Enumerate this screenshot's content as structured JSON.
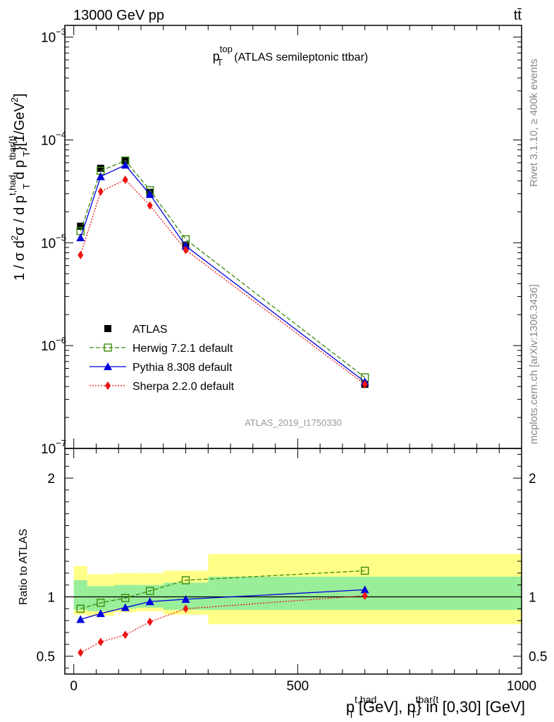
{
  "header": {
    "energy_label": "13000 GeV pp",
    "process_label": "tt̄"
  },
  "side_labels": {
    "rivet": "Rivet 3.1.10, ≥ 400k events",
    "url": "mcplots.cern.ch [arXiv:1306.3436]"
  },
  "chart_data": [
    {
      "type": "scatter",
      "title_main": "p",
      "title_sub": "T",
      "title_sup": "top",
      "title_rest": " (ATLAS semileptonic ttbar)",
      "watermark": "ATLAS_2019_I1750330",
      "ylabel": {
        "a": "1 / σ d",
        "b": "2",
        "c": "σ / d p",
        "d": "t,had",
        "e": "T",
        "f": " d p",
        "g": "tbar{t}",
        "h": "T",
        "i": "}[1/GeV",
        "j": "2",
        "k": "]"
      },
      "y_scale": "log",
      "ylim": [
        1e-07,
        0.0013
      ],
      "xlim": [
        -20,
        1000
      ],
      "yticks": [
        {
          "base": "10",
          "exp": "−3",
          "value": 0.001
        },
        {
          "base": "10",
          "exp": "−4",
          "value": 0.0001
        },
        {
          "base": "10",
          "exp": "−5",
          "value": 1e-05
        },
        {
          "base": "10",
          "exp": "−6",
          "value": 1e-06
        },
        {
          "base": "10",
          "exp": "−7",
          "value": 1e-07
        }
      ],
      "legend_position": "bottom-left",
      "x": [
        15,
        60,
        115,
        170,
        250,
        650
      ],
      "series": [
        {
          "name": "ATLAS",
          "color": "#000000",
          "marker": "square-filled",
          "line": "none",
          "values": [
            1.45e-05,
            5.3e-05,
            6.3e-05,
            3.1e-05,
            9.5e-06,
            4.2e-07
          ]
        },
        {
          "name": "Herwig 7.2.1 default",
          "color": "#3a8a0c",
          "marker": "square-open",
          "line": "dashed",
          "values": [
            1.3e-05,
            5e-05,
            6.3e-05,
            3.25e-05,
            1.08e-05,
            4.9e-07
          ]
        },
        {
          "name": "Pythia 8.308 default",
          "color": "#0000dd",
          "marker": "triangle",
          "line": "solid",
          "values": [
            1.12e-05,
            4.4e-05,
            5.7e-05,
            2.95e-05,
            9.3e-06,
            4.45e-07
          ]
        },
        {
          "name": "Sherpa 2.2.0 default",
          "color": "#ee1111",
          "marker": "diamond",
          "line": "dotted",
          "values": [
            7.6e-06,
            3.15e-05,
            4.1e-05,
            2.3e-05,
            8.5e-06,
            4.2e-07
          ]
        }
      ]
    },
    {
      "type": "scatter",
      "ylabel": "Ratio to ATLAS",
      "xlabel": {
        "a": "p",
        "b": "t,had",
        "c": "T",
        "d": " [GeV], p",
        "e": "tbar{t",
        "f": "T",
        "g": "} in [0,30] [GeV]"
      },
      "xlim": [
        -20,
        1000
      ],
      "ylim": [
        0.35,
        2.25
      ],
      "yticks": [
        "0.5",
        "1",
        "2"
      ],
      "ytick_values": [
        0.5,
        1,
        2
      ],
      "xticks": [
        "0",
        "500",
        "1000"
      ],
      "xtick_values": [
        0,
        500,
        1000
      ],
      "bands": [
        {
          "x0": 0,
          "x1": 30,
          "yellow": [
            0.85,
            1.26
          ],
          "green": [
            0.89,
            1.14
          ]
        },
        {
          "x0": 30,
          "x1": 90,
          "yellow": [
            0.84,
            1.19
          ],
          "green": [
            0.88,
            1.09
          ]
        },
        {
          "x0": 90,
          "x1": 140,
          "yellow": [
            0.87,
            1.2
          ],
          "green": [
            0.9,
            1.1
          ]
        },
        {
          "x0": 140,
          "x1": 200,
          "yellow": [
            0.88,
            1.2
          ],
          "green": [
            0.91,
            1.1
          ]
        },
        {
          "x0": 200,
          "x1": 300,
          "yellow": [
            0.85,
            1.22
          ],
          "green": [
            0.89,
            1.12
          ]
        },
        {
          "x0": 300,
          "x1": 1000,
          "yellow": [
            0.77,
            1.36
          ],
          "green": [
            0.89,
            1.17
          ]
        }
      ],
      "x": [
        15,
        60,
        115,
        170,
        250,
        650
      ],
      "series": [
        {
          "name": "Herwig 7.2.1 default",
          "color": "#3a8a0c",
          "marker": "square-open",
          "line": "dashed",
          "values": [
            0.9,
            0.95,
            0.99,
            1.05,
            1.14,
            1.22
          ]
        },
        {
          "name": "Pythia 8.308 default",
          "color": "#0000dd",
          "marker": "triangle",
          "line": "solid",
          "values": [
            0.81,
            0.86,
            0.91,
            0.96,
            0.98,
            1.06
          ]
        },
        {
          "name": "Sherpa 2.2.0 default",
          "color": "#ee1111",
          "marker": "diamond",
          "line": "dotted",
          "values": [
            0.53,
            0.62,
            0.68,
            0.79,
            0.9,
            1.01
          ]
        }
      ]
    }
  ]
}
